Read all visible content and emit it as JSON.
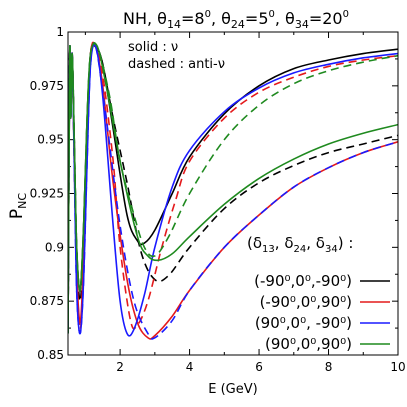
{
  "chart_data": {
    "type": "line",
    "title": "NH, θ14=8⁰, θ24=5⁰, θ34=20⁰",
    "title_parts": {
      "prefix": "NH, ",
      "t14": "θ",
      "t14_sub": "14",
      "t14_val": "=8",
      "t24": "θ",
      "t24_sub": "24",
      "t24_val": "=5",
      "t34": "θ",
      "t34_sub": "34",
      "t34_val": "=20",
      "deg": "0",
      "sep": ", "
    },
    "xlabel": "E (GeV)",
    "ylabel": "P",
    "ylabel_sub": "NC",
    "xlim": [
      0.5,
      10
    ],
    "ylim": [
      0.85,
      1.0
    ],
    "xticks": [
      "2",
      "4",
      "6",
      "8",
      "10"
    ],
    "xtick_values": [
      2,
      4,
      6,
      8,
      10
    ],
    "yticks": [
      "0.85",
      "0.875",
      "0.9",
      "0.925",
      "0.95",
      "0.975",
      "1"
    ],
    "ytick_values": [
      0.85,
      0.875,
      0.9,
      0.925,
      0.95,
      0.975,
      1.0
    ],
    "grid": false,
    "annotations": {
      "solid": "solid : ν",
      "dashed": "dashed : anti-ν"
    },
    "legend": {
      "placement": "bottom-right",
      "header": "(δ13, δ24, δ34) :",
      "header_parts": {
        "open": "(",
        "d": "δ",
        "s13": "13",
        "s24": "24",
        "s34": "34",
        "comma": ", ",
        "close": ") :"
      },
      "entries": [
        {
          "label": "(-90⁰,0⁰,-90⁰)",
          "color": "#000000"
        },
        {
          "label": "(-90⁰,0⁰,90⁰)",
          "color": "#e41a1c"
        },
        {
          "label": "(90⁰,0⁰, -90⁰)",
          "color": "#1a1aff"
        },
        {
          "label": "(90⁰,0⁰,90⁰)",
          "color": "#1f8a1f"
        }
      ]
    },
    "series": [
      {
        "name": "(-90⁰,0⁰,-90⁰) ν",
        "color": "#000000",
        "style": "solid",
        "points": [
          [
            0.5,
            0.86
          ],
          [
            0.55,
            0.99
          ],
          [
            0.58,
            0.96
          ],
          [
            0.62,
            0.99
          ],
          [
            0.68,
            0.95
          ],
          [
            0.75,
            0.9
          ],
          [
            0.85,
            0.88
          ],
          [
            0.95,
            0.91
          ],
          [
            1.05,
            0.96
          ],
          [
            1.15,
            0.99
          ],
          [
            1.3,
            0.993
          ],
          [
            1.5,
            0.985
          ],
          [
            1.8,
            0.955
          ],
          [
            2.2,
            0.915
          ],
          [
            2.5,
            0.903
          ],
          [
            2.7,
            0.902
          ],
          [
            3.0,
            0.908
          ],
          [
            3.5,
            0.925
          ],
          [
            4.0,
            0.942
          ],
          [
            5.0,
            0.962
          ],
          [
            6.0,
            0.975
          ],
          [
            7.0,
            0.983
          ],
          [
            8.0,
            0.987
          ],
          [
            9.0,
            0.99
          ],
          [
            10.0,
            0.992
          ]
        ]
      },
      {
        "name": "(-90⁰,0⁰,-90⁰) anti-ν",
        "color": "#000000",
        "style": "dashed",
        "points": [
          [
            0.5,
            0.86
          ],
          [
            0.55,
            0.99
          ],
          [
            0.58,
            0.96
          ],
          [
            0.62,
            0.99
          ],
          [
            0.68,
            0.95
          ],
          [
            0.75,
            0.9
          ],
          [
            0.85,
            0.875
          ],
          [
            0.95,
            0.905
          ],
          [
            1.05,
            0.955
          ],
          [
            1.15,
            0.99
          ],
          [
            1.3,
            0.993
          ],
          [
            1.5,
            0.985
          ],
          [
            1.8,
            0.96
          ],
          [
            2.2,
            0.93
          ],
          [
            2.6,
            0.898
          ],
          [
            3.0,
            0.885
          ],
          [
            3.4,
            0.887
          ],
          [
            4.0,
            0.9
          ],
          [
            5.0,
            0.918
          ],
          [
            6.0,
            0.93
          ],
          [
            7.0,
            0.938
          ],
          [
            8.0,
            0.944
          ],
          [
            9.0,
            0.948
          ],
          [
            10.0,
            0.952
          ]
        ]
      },
      {
        "name": "(-90⁰,0⁰,90⁰) ν",
        "color": "#e41a1c",
        "style": "solid",
        "points": [
          [
            0.5,
            0.86
          ],
          [
            0.55,
            0.99
          ],
          [
            0.58,
            0.96
          ],
          [
            0.62,
            0.99
          ],
          [
            0.68,
            0.94
          ],
          [
            0.75,
            0.89
          ],
          [
            0.85,
            0.865
          ],
          [
            0.95,
            0.895
          ],
          [
            1.05,
            0.95
          ],
          [
            1.15,
            0.99
          ],
          [
            1.3,
            0.993
          ],
          [
            1.5,
            0.975
          ],
          [
            1.8,
            0.93
          ],
          [
            2.2,
            0.885
          ],
          [
            2.5,
            0.865
          ],
          [
            2.8,
            0.858
          ],
          [
            3.0,
            0.859
          ],
          [
            3.5,
            0.868
          ],
          [
            4.0,
            0.88
          ],
          [
            5.0,
            0.9
          ],
          [
            6.0,
            0.915
          ],
          [
            7.0,
            0.928
          ],
          [
            8.0,
            0.937
          ],
          [
            9.0,
            0.944
          ],
          [
            10.0,
            0.949
          ]
        ]
      },
      {
        "name": "(-90⁰,0⁰,90⁰) anti-ν",
        "color": "#e41a1c",
        "style": "dashed",
        "points": [
          [
            0.5,
            0.86
          ],
          [
            0.55,
            0.99
          ],
          [
            0.58,
            0.96
          ],
          [
            0.62,
            0.99
          ],
          [
            0.68,
            0.94
          ],
          [
            0.75,
            0.89
          ],
          [
            0.85,
            0.862
          ],
          [
            0.95,
            0.89
          ],
          [
            1.05,
            0.945
          ],
          [
            1.15,
            0.99
          ],
          [
            1.3,
            0.993
          ],
          [
            1.5,
            0.98
          ],
          [
            1.8,
            0.94
          ],
          [
            2.0,
            0.9
          ],
          [
            2.3,
            0.866
          ],
          [
            2.5,
            0.864
          ],
          [
            2.8,
            0.875
          ],
          [
            3.2,
            0.9
          ],
          [
            3.6,
            0.922
          ],
          [
            4.0,
            0.94
          ],
          [
            5.0,
            0.96
          ],
          [
            6.0,
            0.972
          ],
          [
            7.0,
            0.979
          ],
          [
            8.0,
            0.984
          ],
          [
            9.0,
            0.987
          ],
          [
            10.0,
            0.989
          ]
        ]
      },
      {
        "name": "(90⁰,0⁰, -90⁰) ν",
        "color": "#1a1aff",
        "style": "solid",
        "points": [
          [
            0.5,
            0.86
          ],
          [
            0.55,
            0.99
          ],
          [
            0.58,
            0.96
          ],
          [
            0.62,
            0.99
          ],
          [
            0.68,
            0.94
          ],
          [
            0.75,
            0.88
          ],
          [
            0.85,
            0.86
          ],
          [
            0.95,
            0.885
          ],
          [
            1.05,
            0.94
          ],
          [
            1.15,
            0.985
          ],
          [
            1.3,
            0.993
          ],
          [
            1.5,
            0.97
          ],
          [
            1.8,
            0.91
          ],
          [
            2.0,
            0.875
          ],
          [
            2.2,
            0.86
          ],
          [
            2.4,
            0.862
          ],
          [
            2.7,
            0.878
          ],
          [
            3.0,
            0.9
          ],
          [
            3.5,
            0.928
          ],
          [
            4.0,
            0.945
          ],
          [
            5.0,
            0.963
          ],
          [
            6.0,
            0.974
          ],
          [
            7.0,
            0.981
          ],
          [
            8.0,
            0.985
          ],
          [
            9.0,
            0.988
          ],
          [
            10.0,
            0.99
          ]
        ]
      },
      {
        "name": "(90⁰,0⁰, -90⁰) anti-ν",
        "color": "#1a1aff",
        "style": "dashed",
        "points": [
          [
            0.5,
            0.86
          ],
          [
            0.55,
            0.99
          ],
          [
            0.58,
            0.96
          ],
          [
            0.62,
            0.99
          ],
          [
            0.68,
            0.94
          ],
          [
            0.75,
            0.88
          ],
          [
            0.85,
            0.86
          ],
          [
            0.95,
            0.885
          ],
          [
            1.05,
            0.94
          ],
          [
            1.15,
            0.985
          ],
          [
            1.3,
            0.993
          ],
          [
            1.6,
            0.96
          ],
          [
            2.0,
            0.91
          ],
          [
            2.4,
            0.875
          ],
          [
            2.8,
            0.86
          ],
          [
            3.0,
            0.858
          ],
          [
            3.5,
            0.866
          ],
          [
            4.0,
            0.88
          ],
          [
            5.0,
            0.9
          ],
          [
            6.0,
            0.915
          ],
          [
            7.0,
            0.928
          ],
          [
            8.0,
            0.937
          ],
          [
            9.0,
            0.944
          ],
          [
            10.0,
            0.949
          ]
        ]
      },
      {
        "name": "(90⁰,0⁰,90⁰) ν",
        "color": "#1f8a1f",
        "style": "solid",
        "points": [
          [
            0.5,
            0.86
          ],
          [
            0.55,
            0.99
          ],
          [
            0.58,
            0.96
          ],
          [
            0.62,
            0.99
          ],
          [
            0.68,
            0.95
          ],
          [
            0.75,
            0.9
          ],
          [
            0.85,
            0.88
          ],
          [
            0.95,
            0.91
          ],
          [
            1.05,
            0.96
          ],
          [
            1.15,
            0.99
          ],
          [
            1.35,
            0.993
          ],
          [
            1.6,
            0.975
          ],
          [
            2.0,
            0.94
          ],
          [
            2.5,
            0.905
          ],
          [
            2.8,
            0.896
          ],
          [
            3.1,
            0.894
          ],
          [
            3.5,
            0.897
          ],
          [
            4.0,
            0.905
          ],
          [
            5.0,
            0.92
          ],
          [
            6.0,
            0.932
          ],
          [
            7.0,
            0.941
          ],
          [
            8.0,
            0.948
          ],
          [
            9.0,
            0.953
          ],
          [
            10.0,
            0.957
          ]
        ]
      },
      {
        "name": "(90⁰,0⁰,90⁰) anti-ν",
        "color": "#1f8a1f",
        "style": "dashed",
        "points": [
          [
            0.5,
            0.86
          ],
          [
            0.55,
            0.99
          ],
          [
            0.58,
            0.96
          ],
          [
            0.62,
            0.99
          ],
          [
            0.68,
            0.95
          ],
          [
            0.75,
            0.9
          ],
          [
            0.85,
            0.88
          ],
          [
            0.95,
            0.91
          ],
          [
            1.05,
            0.96
          ],
          [
            1.15,
            0.99
          ],
          [
            1.35,
            0.993
          ],
          [
            1.7,
            0.97
          ],
          [
            2.0,
            0.94
          ],
          [
            2.4,
            0.915
          ],
          [
            2.7,
            0.9
          ],
          [
            3.0,
            0.896
          ],
          [
            3.4,
            0.905
          ],
          [
            4.0,
            0.925
          ],
          [
            5.0,
            0.95
          ],
          [
            6.0,
            0.966
          ],
          [
            7.0,
            0.976
          ],
          [
            8.0,
            0.982
          ],
          [
            9.0,
            0.986
          ],
          [
            10.0,
            0.989
          ]
        ]
      }
    ]
  }
}
